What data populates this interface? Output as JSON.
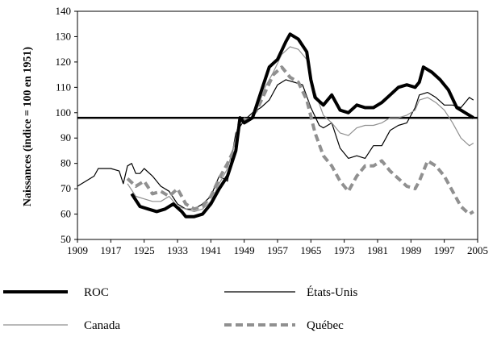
{
  "chart_data": {
    "type": "line",
    "title": "",
    "xlabel": "",
    "ylabel": "Naissances (indice = 100 en 1951)",
    "xlim": [
      1909,
      2005
    ],
    "ylim": [
      50,
      140
    ],
    "x_ticks": [
      "1909",
      "1917",
      "1925",
      "1933",
      "1941",
      "1949",
      "1957",
      "1965",
      "1973",
      "1981",
      "1989",
      "1997",
      "2005"
    ],
    "y_ticks": [
      "50",
      "60",
      "70",
      "80",
      "90",
      "100",
      "110",
      "120",
      "130",
      "140"
    ],
    "reference_line": 98,
    "grid": false,
    "legend_position": "bottom",
    "series": [
      {
        "name": "ROC",
        "color": "#000000",
        "style": "solid-thick",
        "points": [
          [
            1922,
            68
          ],
          [
            1924,
            63
          ],
          [
            1926,
            62
          ],
          [
            1928,
            61
          ],
          [
            1930,
            62
          ],
          [
            1932,
            64
          ],
          [
            1934,
            61
          ],
          [
            1935,
            59
          ],
          [
            1937,
            59
          ],
          [
            1939,
            60
          ],
          [
            1941,
            64
          ],
          [
            1943,
            70
          ],
          [
            1945,
            75
          ],
          [
            1947,
            85
          ],
          [
            1948,
            98
          ],
          [
            1949,
            96
          ],
          [
            1951,
            98
          ],
          [
            1953,
            108
          ],
          [
            1955,
            118
          ],
          [
            1957,
            121
          ],
          [
            1959,
            128
          ],
          [
            1960,
            131
          ],
          [
            1962,
            129
          ],
          [
            1964,
            124
          ],
          [
            1965,
            113
          ],
          [
            1966,
            106
          ],
          [
            1968,
            103
          ],
          [
            1970,
            107
          ],
          [
            1972,
            101
          ],
          [
            1974,
            100
          ],
          [
            1976,
            103
          ],
          [
            1978,
            102
          ],
          [
            1980,
            102
          ],
          [
            1982,
            104
          ],
          [
            1984,
            107
          ],
          [
            1986,
            110
          ],
          [
            1988,
            111
          ],
          [
            1990,
            110
          ],
          [
            1991,
            112
          ],
          [
            1992,
            118
          ],
          [
            1994,
            116
          ],
          [
            1996,
            113
          ],
          [
            1998,
            109
          ],
          [
            2000,
            102
          ],
          [
            2002,
            100
          ],
          [
            2004,
            98
          ]
        ]
      },
      {
        "name": "États-Unis",
        "color": "#000000",
        "style": "solid-thin",
        "points": [
          [
            1909,
            71
          ],
          [
            1911,
            73
          ],
          [
            1913,
            75
          ],
          [
            1914,
            78
          ],
          [
            1917,
            78
          ],
          [
            1919,
            77
          ],
          [
            1920,
            72
          ],
          [
            1921,
            79
          ],
          [
            1922,
            80
          ],
          [
            1923,
            76
          ],
          [
            1924,
            76
          ],
          [
            1925,
            78
          ],
          [
            1927,
            75
          ],
          [
            1929,
            71
          ],
          [
            1931,
            69
          ],
          [
            1933,
            64
          ],
          [
            1935,
            62
          ],
          [
            1937,
            62
          ],
          [
            1939,
            64
          ],
          [
            1941,
            67
          ],
          [
            1943,
            75
          ],
          [
            1945,
            73
          ],
          [
            1947,
            92
          ],
          [
            1949,
            97
          ],
          [
            1951,
            100
          ],
          [
            1953,
            102
          ],
          [
            1955,
            105
          ],
          [
            1957,
            111
          ],
          [
            1959,
            113
          ],
          [
            1961,
            112
          ],
          [
            1963,
            111
          ],
          [
            1965,
            102
          ],
          [
            1967,
            95
          ],
          [
            1968,
            94
          ],
          [
            1970,
            96
          ],
          [
            1972,
            86
          ],
          [
            1974,
            82
          ],
          [
            1976,
            83
          ],
          [
            1978,
            82
          ],
          [
            1980,
            87
          ],
          [
            1982,
            87
          ],
          [
            1984,
            93
          ],
          [
            1986,
            95
          ],
          [
            1988,
            96
          ],
          [
            1990,
            102
          ],
          [
            1991,
            107
          ],
          [
            1993,
            108
          ],
          [
            1995,
            106
          ],
          [
            1997,
            103
          ],
          [
            1999,
            103
          ],
          [
            2001,
            102
          ],
          [
            2003,
            106
          ],
          [
            2004,
            105
          ]
        ]
      },
      {
        "name": "Canada",
        "color": "#909090",
        "style": "solid-thin",
        "points": [
          [
            1921,
            72
          ],
          [
            1923,
            67
          ],
          [
            1925,
            66
          ],
          [
            1927,
            65
          ],
          [
            1929,
            65
          ],
          [
            1931,
            67
          ],
          [
            1933,
            63
          ],
          [
            1935,
            62
          ],
          [
            1937,
            61
          ],
          [
            1939,
            62
          ],
          [
            1941,
            65
          ],
          [
            1943,
            72
          ],
          [
            1945,
            78
          ],
          [
            1947,
            90
          ],
          [
            1948,
            97
          ],
          [
            1950,
            97
          ],
          [
            1952,
            101
          ],
          [
            1954,
            110
          ],
          [
            1956,
            116
          ],
          [
            1958,
            123
          ],
          [
            1960,
            126
          ],
          [
            1962,
            125
          ],
          [
            1964,
            121
          ],
          [
            1966,
            108
          ],
          [
            1968,
            99
          ],
          [
            1970,
            96
          ],
          [
            1972,
            92
          ],
          [
            1974,
            91
          ],
          [
            1976,
            94
          ],
          [
            1978,
            95
          ],
          [
            1980,
            95
          ],
          [
            1982,
            96
          ],
          [
            1984,
            98
          ],
          [
            1986,
            98
          ],
          [
            1988,
            99
          ],
          [
            1990,
            101
          ],
          [
            1991,
            105
          ],
          [
            1993,
            106
          ],
          [
            1995,
            104
          ],
          [
            1997,
            101
          ],
          [
            1999,
            96
          ],
          [
            2001,
            90
          ],
          [
            2003,
            87
          ],
          [
            2004,
            88
          ]
        ]
      },
      {
        "name": "Québec",
        "color": "#909090",
        "style": "dashed-thick",
        "points": [
          [
            1921,
            74
          ],
          [
            1923,
            71
          ],
          [
            1925,
            73
          ],
          [
            1927,
            68
          ],
          [
            1929,
            69
          ],
          [
            1931,
            67
          ],
          [
            1933,
            70
          ],
          [
            1935,
            64
          ],
          [
            1937,
            62
          ],
          [
            1939,
            63
          ],
          [
            1941,
            67
          ],
          [
            1943,
            74
          ],
          [
            1945,
            80
          ],
          [
            1947,
            87
          ],
          [
            1948,
            98
          ],
          [
            1950,
            97
          ],
          [
            1952,
            101
          ],
          [
            1954,
            108
          ],
          [
            1956,
            115
          ],
          [
            1958,
            118
          ],
          [
            1960,
            114
          ],
          [
            1962,
            112
          ],
          [
            1964,
            105
          ],
          [
            1966,
            92
          ],
          [
            1968,
            83
          ],
          [
            1970,
            79
          ],
          [
            1972,
            73
          ],
          [
            1974,
            69
          ],
          [
            1976,
            75
          ],
          [
            1978,
            79
          ],
          [
            1980,
            79
          ],
          [
            1982,
            81
          ],
          [
            1984,
            77
          ],
          [
            1986,
            74
          ],
          [
            1988,
            71
          ],
          [
            1990,
            70
          ],
          [
            1991,
            73
          ],
          [
            1993,
            81
          ],
          [
            1995,
            79
          ],
          [
            1997,
            75
          ],
          [
            1999,
            69
          ],
          [
            2001,
            63
          ],
          [
            2003,
            60
          ],
          [
            2004,
            61
          ]
        ]
      }
    ]
  }
}
